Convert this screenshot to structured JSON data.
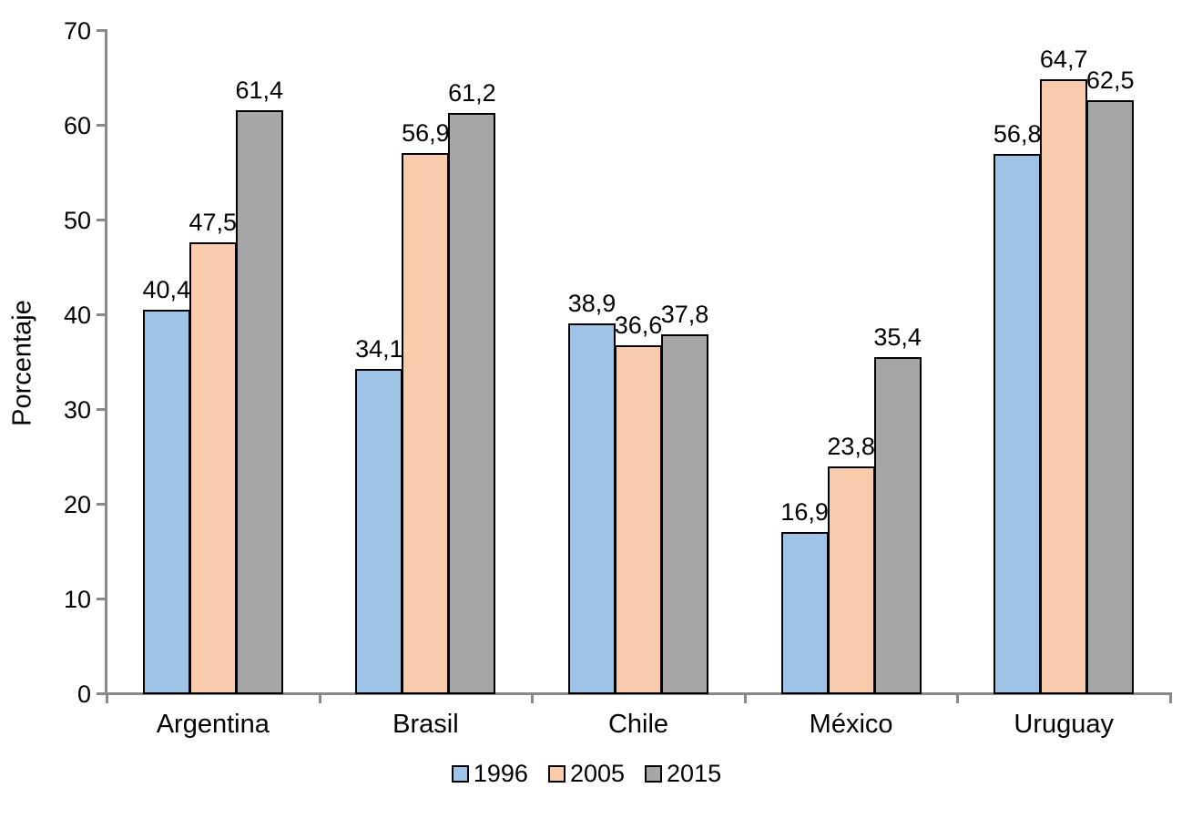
{
  "chart_data": {
    "type": "bar",
    "title": "",
    "xlabel": "",
    "ylabel": "Porcentaje",
    "categories": [
      "Argentina",
      "Brasil",
      "Chile",
      "México",
      "Uruguay"
    ],
    "series": [
      {
        "name": "1996",
        "color": "#9DC3E6",
        "values": [
          40.4,
          34.1,
          38.9,
          16.9,
          56.8
        ],
        "labels": [
          "40,4",
          "34,1",
          "38,9",
          "16,9",
          "56,8"
        ]
      },
      {
        "name": "2005",
        "color": "#F8CBAD",
        "values": [
          47.5,
          56.9,
          36.6,
          23.8,
          64.7
        ],
        "labels": [
          "47,5",
          "56,9",
          "36,6",
          "23,8",
          "64,7"
        ]
      },
      {
        "name": "2015",
        "color": "#A6A6A6",
        "values": [
          61.4,
          61.2,
          37.8,
          35.4,
          62.5
        ],
        "labels": [
          "61,4",
          "61,2",
          "37,8",
          "35,4",
          "62,5"
        ]
      }
    ],
    "ylim": [
      0,
      70
    ],
    "yticks": [
      "0",
      "10",
      "20",
      "30",
      "40",
      "50",
      "60",
      "70"
    ],
    "ytick_step": 10,
    "grid": false,
    "legend_position": "bottom",
    "decimal_separator": ",",
    "colors": {
      "axis": "#898989",
      "bar_border": "#000000",
      "text": "#000000",
      "background": "#FFFFFF"
    }
  }
}
